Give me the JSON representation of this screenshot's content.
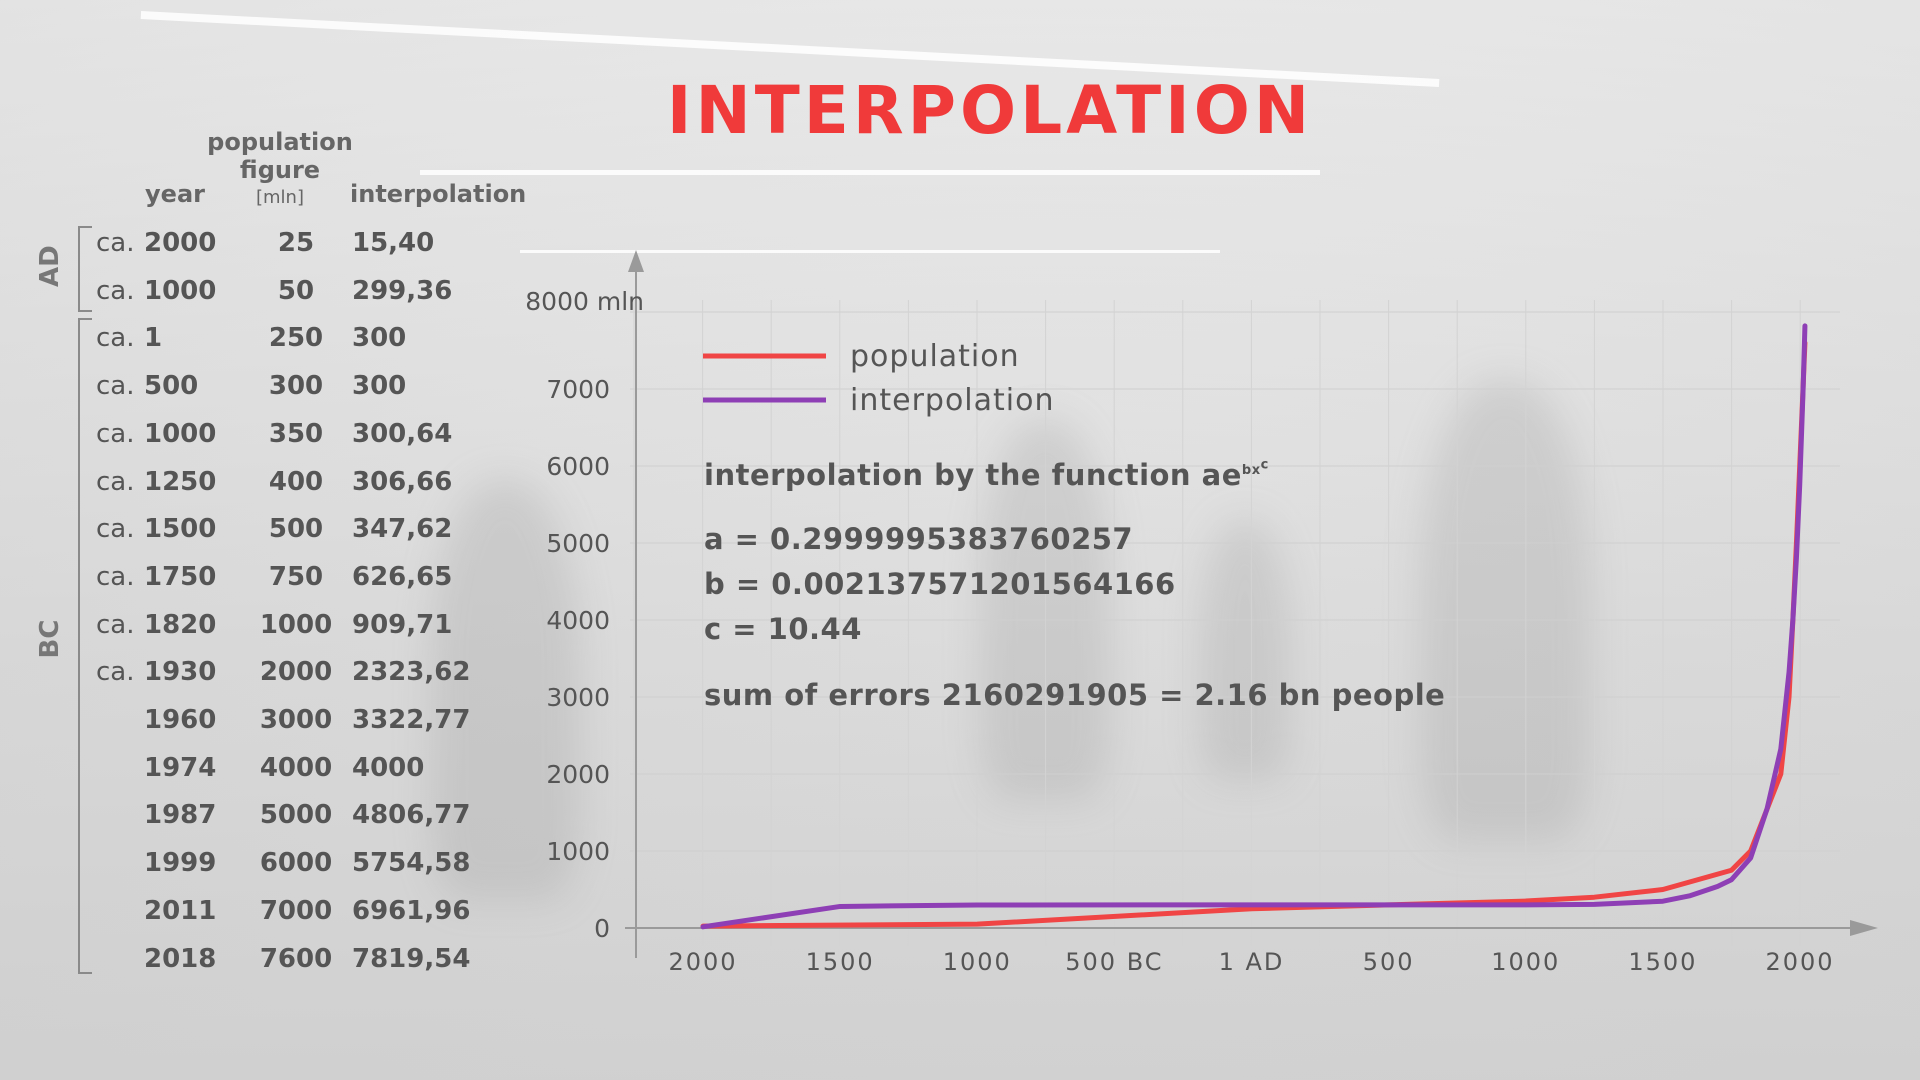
{
  "title": "INTERPOLATION",
  "table": {
    "headers": {
      "year": "year",
      "population_line1": "population",
      "population_line2": "figure",
      "population_unit": "[mln]",
      "interpolation": "interpolation"
    },
    "era_labels": {
      "ad": "AD",
      "bc": "BC"
    },
    "rows": [
      {
        "prefix": "ca.",
        "year": "2000",
        "population": "25",
        "interpolation": "15,40"
      },
      {
        "prefix": "ca.",
        "year": "1000",
        "population": "50",
        "interpolation": "299,36"
      },
      {
        "prefix": "ca.",
        "year": "1",
        "population": "250",
        "interpolation": "300"
      },
      {
        "prefix": "ca.",
        "year": "500",
        "population": "300",
        "interpolation": "300"
      },
      {
        "prefix": "ca.",
        "year": "1000",
        "population": "350",
        "interpolation": "300,64"
      },
      {
        "prefix": "ca.",
        "year": "1250",
        "population": "400",
        "interpolation": "306,66"
      },
      {
        "prefix": "ca.",
        "year": "1500",
        "population": "500",
        "interpolation": "347,62"
      },
      {
        "prefix": "ca.",
        "year": "1750",
        "population": "750",
        "interpolation": "626,65"
      },
      {
        "prefix": "ca.",
        "year": "1820",
        "population": "1000",
        "interpolation": "909,71"
      },
      {
        "prefix": "ca.",
        "year": "1930",
        "population": "2000",
        "interpolation": "2323,62"
      },
      {
        "prefix": "",
        "year": "1960",
        "population": "3000",
        "interpolation": "3322,77"
      },
      {
        "prefix": "",
        "year": "1974",
        "population": "4000",
        "interpolation": "4000"
      },
      {
        "prefix": "",
        "year": "1987",
        "population": "5000",
        "interpolation": "4806,77"
      },
      {
        "prefix": "",
        "year": "1999",
        "population": "6000",
        "interpolation": "5754,58"
      },
      {
        "prefix": "",
        "year": "2011",
        "population": "7000",
        "interpolation": "6961,96"
      },
      {
        "prefix": "",
        "year": "2018",
        "population": "7600",
        "interpolation": "7819,54"
      }
    ]
  },
  "formula": {
    "intro": "interpolation by the function ae",
    "intro_sup": "bx",
    "intro_sup2": "c",
    "a": "a = 0.2999995383760257",
    "b": "b = 0.002137571201564166",
    "c": "c = 10.44",
    "errors": "sum of errors 2160291905 = 2.16 bn people"
  },
  "colors": {
    "population": "#f04545",
    "interpolation": "#8e3fb5",
    "title": "#f03a3a"
  },
  "chart_data": {
    "type": "line",
    "x_ticks": [
      "2000",
      "1500",
      "1000",
      "500 BC",
      "1 AD",
      "500",
      "1000",
      "1500",
      "2000"
    ],
    "x_tick_values": [
      -2000,
      -1500,
      -1000,
      -500,
      0,
      500,
      1000,
      1500,
      2000
    ],
    "y_ticks": [
      "0",
      "1000",
      "2000",
      "3000",
      "4000",
      "5000",
      "6000",
      "7000",
      "8000 mln"
    ],
    "y_tick_values": [
      0,
      1000,
      2000,
      3000,
      4000,
      5000,
      6000,
      7000,
      8000
    ],
    "xlim": [
      -2000,
      2030
    ],
    "ylim": [
      0,
      8000
    ],
    "grid": true,
    "legend": "top-left",
    "series": [
      {
        "name": "population",
        "x": [
          -2000,
          -1000,
          1,
          500,
          1000,
          1250,
          1500,
          1750,
          1820,
          1930,
          1960,
          1974,
          1987,
          1999,
          2011,
          2018
        ],
        "values": [
          25,
          50,
          250,
          300,
          350,
          400,
          500,
          750,
          1000,
          2000,
          3000,
          4000,
          5000,
          6000,
          7000,
          7600
        ]
      },
      {
        "name": "interpolation",
        "x": [
          -2000,
          -1500,
          -1000,
          1,
          500,
          1000,
          1250,
          1500,
          1600,
          1700,
          1750,
          1820,
          1880,
          1930,
          1960,
          1974,
          1987,
          1999,
          2011,
          2018
        ],
        "values": [
          15.4,
          280,
          299.36,
          300,
          300,
          300.64,
          306.66,
          347.62,
          420,
          540,
          626.65,
          909.71,
          1550,
          2323.62,
          3322.77,
          4000,
          4806.77,
          5754.58,
          6961.96,
          7819.54
        ]
      }
    ]
  }
}
